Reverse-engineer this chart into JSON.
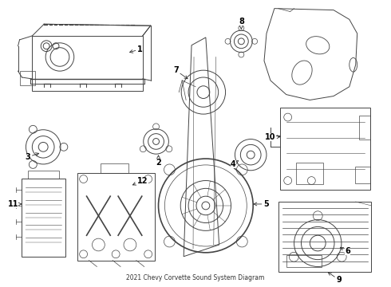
{
  "title": "2021 Chevy Corvette Sound System Diagram",
  "background_color": "#ffffff",
  "line_color": "#444444",
  "text_color": "#000000",
  "fig_w": 4.9,
  "fig_h": 3.6,
  "dpi": 100
}
